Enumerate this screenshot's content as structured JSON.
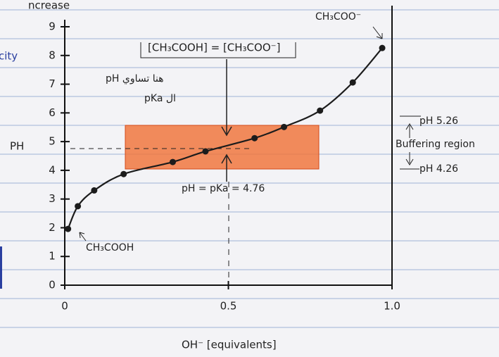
{
  "chart_data": {
    "type": "line",
    "y_label": "PH",
    "x_label": "OH⁻ [equivalents]",
    "x": [
      0.01,
      0.04,
      0.09,
      0.18,
      0.33,
      0.43,
      0.58,
      0.67,
      0.78,
      0.88,
      0.97
    ],
    "values": [
      1.96,
      2.75,
      3.3,
      3.87,
      4.29,
      4.66,
      5.12,
      5.51,
      6.08,
      7.06,
      8.26
    ],
    "color": "#1c1c1c",
    "xlim": [
      0,
      1
    ],
    "xticks": [
      0,
      0.5,
      {
        "value": 1,
        "label": "1.0"
      }
    ],
    "ylim": [
      0,
      9
    ],
    "yticks": [
      0,
      1,
      2,
      3,
      4,
      5,
      6,
      7,
      8,
      9
    ],
    "annotations": {
      "equal": "[CH₃COOH] = [CH₃COO⁻]",
      "pka": "pH = pKa = 4.76",
      "acid": "CH₃COOH",
      "base": "CH₃COO⁻",
      "arabic_1": "pH هنا تساوي",
      "arabic_2": "pKa ال",
      "upper": "pH 5.26",
      "region": "Buffering region",
      "lower": "pH 4.26",
      "margin_1": "ncrease",
      "margin_2": "city"
    }
  }
}
